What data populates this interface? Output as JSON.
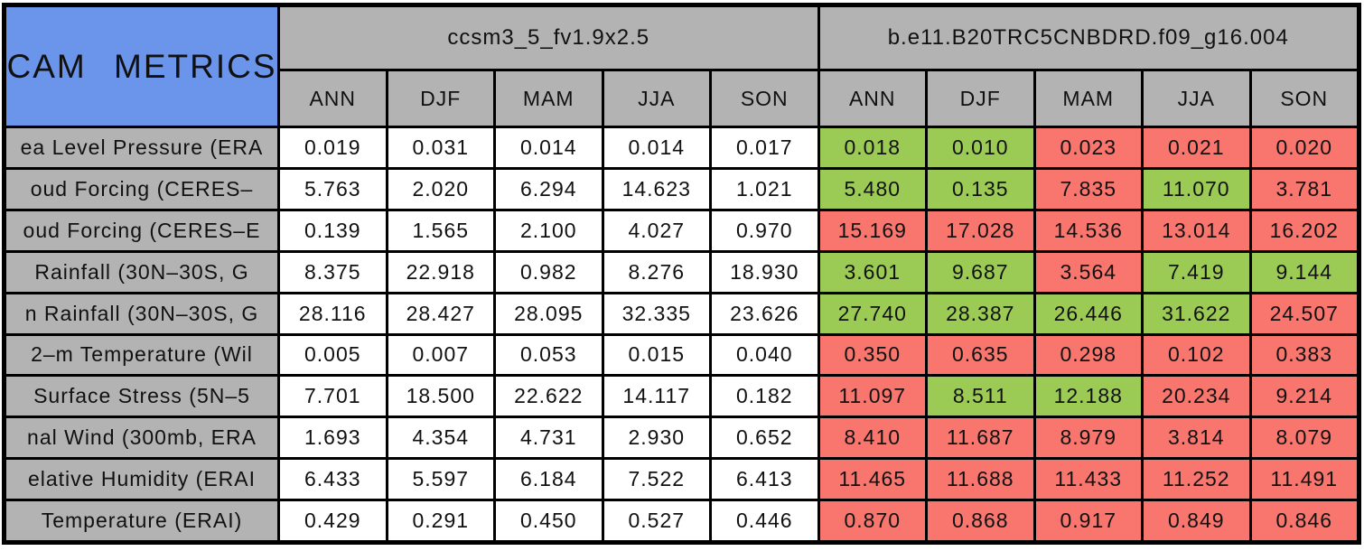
{
  "title": "CAM METRICS",
  "colors": {
    "title_bg": "#6b95ea",
    "header_bg": "#b3b3b3",
    "cell_bg": "#ffffff",
    "green": "#9ccb55",
    "red": "#f8766d",
    "grid": "#000000",
    "text": "#111111"
  },
  "chart_data": {
    "type": "table",
    "title": "CAM METRICS",
    "column_groups": [
      "ccsm3_5_fv1.9x2.5",
      "b.e11.B20TRC5CNBDRD.f09_g16.004"
    ],
    "seasons": [
      "ANN",
      "DJF",
      "MAM",
      "JJA",
      "SON"
    ],
    "value_format": "3 decimal places",
    "cell_color_legend": {
      "white": "reference model value",
      "green": "test model cell (favorable)",
      "red": "test model cell (unfavorable)"
    },
    "rows": [
      {
        "label": "ea Level Pressure (ERA",
        "values": [
          [
            0.019,
            0.031,
            0.014,
            0.014,
            0.017
          ],
          [
            0.018,
            0.01,
            0.023,
            0.021,
            0.02
          ]
        ],
        "colors": [
          [
            "white",
            "white",
            "white",
            "white",
            "white"
          ],
          [
            "green",
            "green",
            "red",
            "red",
            "red"
          ]
        ]
      },
      {
        "label": "oud Forcing (CERES–",
        "values": [
          [
            5.763,
            2.02,
            6.294,
            14.623,
            1.021
          ],
          [
            5.48,
            0.135,
            7.835,
            11.07,
            3.781
          ]
        ],
        "colors": [
          [
            "white",
            "white",
            "white",
            "white",
            "white"
          ],
          [
            "green",
            "green",
            "red",
            "green",
            "red"
          ]
        ]
      },
      {
        "label": "oud Forcing (CERES–E",
        "values": [
          [
            0.139,
            1.565,
            2.1,
            4.027,
            0.97
          ],
          [
            15.169,
            17.028,
            14.536,
            13.014,
            16.202
          ]
        ],
        "colors": [
          [
            "white",
            "white",
            "white",
            "white",
            "white"
          ],
          [
            "red",
            "red",
            "red",
            "red",
            "red"
          ]
        ]
      },
      {
        "label": "Rainfall (30N–30S, G",
        "values": [
          [
            8.375,
            22.918,
            0.982,
            8.276,
            18.93
          ],
          [
            3.601,
            9.687,
            3.564,
            7.419,
            9.144
          ]
        ],
        "colors": [
          [
            "white",
            "white",
            "white",
            "white",
            "white"
          ],
          [
            "green",
            "green",
            "red",
            "green",
            "green"
          ]
        ]
      },
      {
        "label": "n Rainfall (30N–30S, G",
        "values": [
          [
            28.116,
            28.427,
            28.095,
            32.335,
            23.626
          ],
          [
            27.74,
            28.387,
            26.446,
            31.622,
            24.507
          ]
        ],
        "colors": [
          [
            "white",
            "white",
            "white",
            "white",
            "white"
          ],
          [
            "green",
            "green",
            "green",
            "green",
            "red"
          ]
        ]
      },
      {
        "label": "2–m Temperature (Wil",
        "values": [
          [
            0.005,
            0.007,
            0.053,
            0.015,
            0.04
          ],
          [
            0.35,
            0.635,
            0.298,
            0.102,
            0.383
          ]
        ],
        "colors": [
          [
            "white",
            "white",
            "white",
            "white",
            "white"
          ],
          [
            "red",
            "red",
            "red",
            "red",
            "red"
          ]
        ]
      },
      {
        "label": "Surface Stress (5N–5",
        "values": [
          [
            7.701,
            18.5,
            22.622,
            14.117,
            0.182
          ],
          [
            11.097,
            8.511,
            12.188,
            20.234,
            9.214
          ]
        ],
        "colors": [
          [
            "white",
            "white",
            "white",
            "white",
            "white"
          ],
          [
            "red",
            "green",
            "green",
            "red",
            "red"
          ]
        ]
      },
      {
        "label": "nal Wind (300mb, ERA",
        "values": [
          [
            1.693,
            4.354,
            4.731,
            2.93,
            0.652
          ],
          [
            8.41,
            11.687,
            8.979,
            3.814,
            8.079
          ]
        ],
        "colors": [
          [
            "white",
            "white",
            "white",
            "white",
            "white"
          ],
          [
            "red",
            "red",
            "red",
            "red",
            "red"
          ]
        ]
      },
      {
        "label": "elative Humidity (ERAI",
        "values": [
          [
            6.433,
            5.597,
            6.184,
            7.522,
            6.413
          ],
          [
            11.465,
            11.688,
            11.433,
            11.252,
            11.491
          ]
        ],
        "colors": [
          [
            "white",
            "white",
            "white",
            "white",
            "white"
          ],
          [
            "red",
            "red",
            "red",
            "red",
            "red"
          ]
        ]
      },
      {
        "label": "Temperature (ERAI)",
        "values": [
          [
            0.429,
            0.291,
            0.45,
            0.527,
            0.446
          ],
          [
            0.87,
            0.868,
            0.917,
            0.849,
            0.846
          ]
        ],
        "colors": [
          [
            "white",
            "white",
            "white",
            "white",
            "white"
          ],
          [
            "red",
            "red",
            "red",
            "red",
            "red"
          ]
        ]
      }
    ]
  }
}
